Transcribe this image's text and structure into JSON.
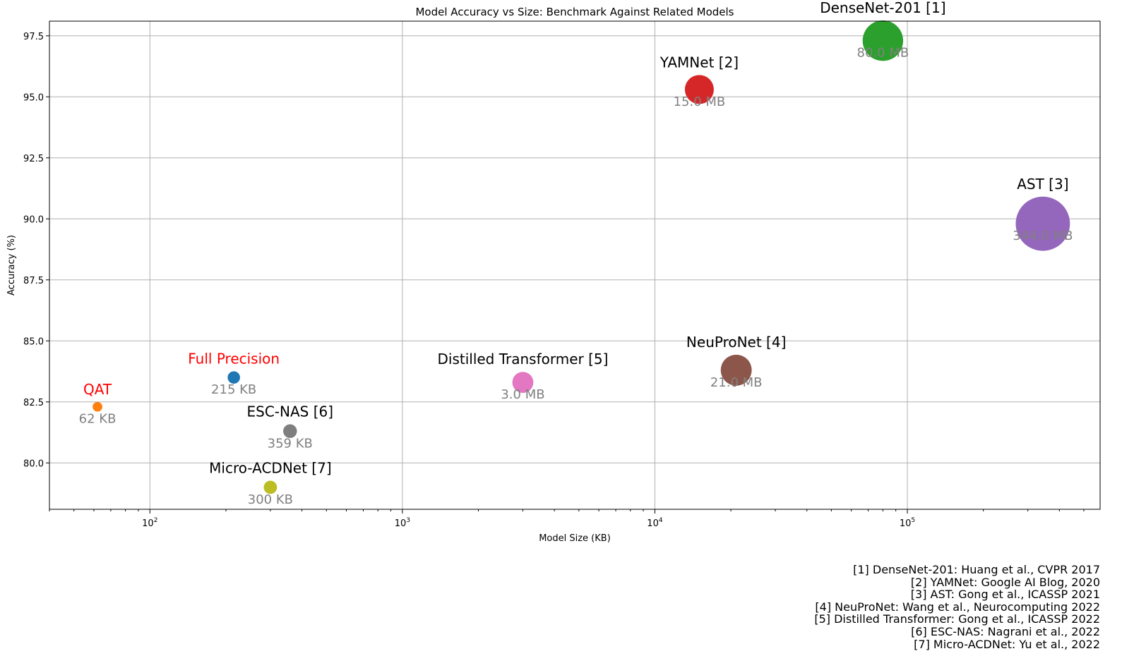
{
  "chart_data": {
    "type": "scatter",
    "title": "Model Accuracy vs Size: Benchmark Against Related Models",
    "xlabel": "Model Size (KB)",
    "ylabel": "Accuracy (%)",
    "xscale": "log",
    "xlim": [
      40,
      580000
    ],
    "ylim": [
      78.1,
      98.1
    ],
    "yticks": [
      "80.0",
      "82.5",
      "85.0",
      "87.5",
      "90.0",
      "92.5",
      "95.0",
      "97.5"
    ],
    "xticks": [
      {
        "value": 100,
        "base": "10",
        "exp": "2"
      },
      {
        "value": 1000,
        "base": "10",
        "exp": "3"
      },
      {
        "value": 10000,
        "base": "10",
        "exp": "4"
      },
      {
        "value": 100000,
        "base": "10",
        "exp": "5"
      }
    ],
    "grid": true,
    "points": [
      {
        "name": "QAT",
        "x": 62,
        "y": 82.3,
        "size_label": "62 KB",
        "color": "#ff7f0e",
        "name_color": "#ff0000"
      },
      {
        "name": "Full Precision",
        "x": 215,
        "y": 83.5,
        "size_label": "215 KB",
        "color": "#1f77b4",
        "name_color": "#ff0000"
      },
      {
        "name": "ESC-NAS [6]",
        "x": 359,
        "y": 81.3,
        "size_label": "359 KB",
        "color": "#7f7f7f",
        "name_color": "#000000"
      },
      {
        "name": "Micro-ACDNet [7]",
        "x": 300,
        "y": 79.0,
        "size_label": "300 KB",
        "color": "#bcbd22",
        "name_color": "#000000"
      },
      {
        "name": "Distilled Transformer [5]",
        "x": 3000,
        "y": 83.3,
        "size_label": "3.0 MB",
        "color": "#e377c2",
        "name_color": "#000000"
      },
      {
        "name": "NeuProNet [4]",
        "x": 21000,
        "y": 83.8,
        "size_label": "21.0 MB",
        "color": "#8c564b",
        "name_color": "#000000"
      },
      {
        "name": "YAMNet [2]",
        "x": 15000,
        "y": 95.3,
        "size_label": "15.0 MB",
        "color": "#d62728",
        "name_color": "#000000"
      },
      {
        "name": "DenseNet-201 [1]",
        "x": 80000,
        "y": 97.3,
        "size_label": "80.0 MB",
        "color": "#2ca02c",
        "name_color": "#000000"
      },
      {
        "name": "AST [3]",
        "x": 344000,
        "y": 89.8,
        "size_label": "344.0 MB",
        "color": "#9467bd",
        "name_color": "#000000"
      }
    ]
  },
  "references": [
    "[1] DenseNet-201: Huang et al., CVPR 2017",
    "[2] YAMNet: Google AI Blog, 2020",
    "[3] AST: Gong et al., ICASSP 2021",
    "[4] NeuProNet: Wang et al., Neurocomputing 2022",
    "[5] Distilled Transformer: Gong et al., ICASSP 2022",
    "[6] ESC-NAS: Nagrani et al., 2022",
    "[7] Micro-ACDNet: Yu et al., 2022"
  ]
}
